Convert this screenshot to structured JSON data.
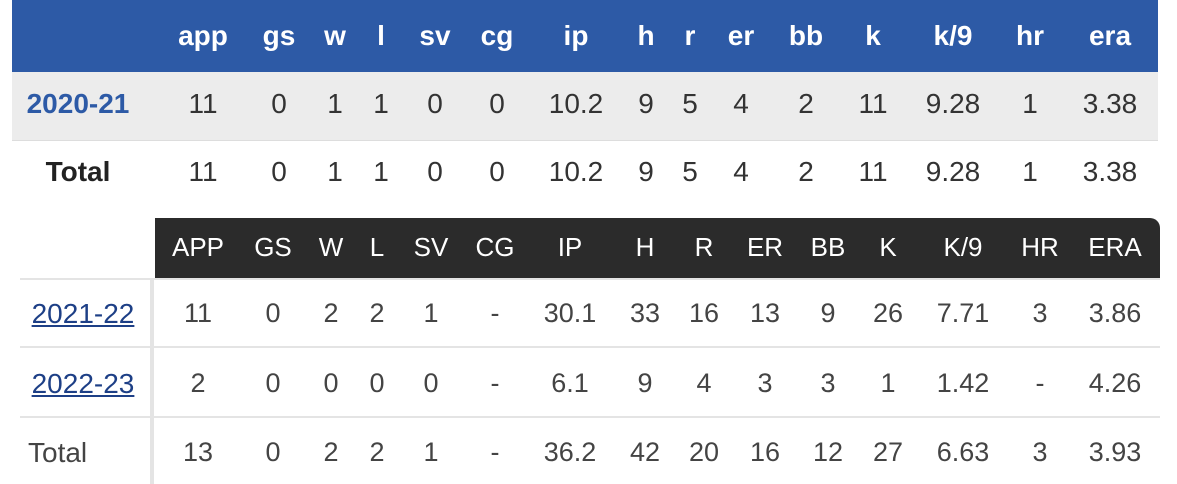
{
  "table1": {
    "headers": [
      "app",
      "gs",
      "w",
      "l",
      "sv",
      "cg",
      "ip",
      "h",
      "r",
      "er",
      "bb",
      "k",
      "k/9",
      "hr",
      "era"
    ],
    "rows": [
      {
        "label": "2020-21",
        "cells": [
          "11",
          "0",
          "1",
          "1",
          "0",
          "0",
          "10.2",
          "9",
          "5",
          "4",
          "2",
          "11",
          "9.28",
          "1",
          "3.38"
        ]
      },
      {
        "label": "Total",
        "cells": [
          "11",
          "0",
          "1",
          "1",
          "0",
          "0",
          "10.2",
          "9",
          "5",
          "4",
          "2",
          "11",
          "9.28",
          "1",
          "3.38"
        ]
      }
    ]
  },
  "table2": {
    "headers": [
      "APP",
      "GS",
      "W",
      "L",
      "SV",
      "CG",
      "IP",
      "H",
      "R",
      "ER",
      "BB",
      "K",
      "K/9",
      "HR",
      "ERA"
    ],
    "rows": [
      {
        "label": "2021-22",
        "cells": [
          "11",
          "0",
          "2",
          "2",
          "1",
          "-",
          "30.1",
          "33",
          "16",
          "13",
          "9",
          "26",
          "7.71",
          "3",
          "3.86"
        ]
      },
      {
        "label": "2022-23",
        "cells": [
          "2",
          "0",
          "0",
          "0",
          "0",
          "-",
          "6.1",
          "9",
          "4",
          "3",
          "3",
          "1",
          "1.42",
          "-",
          "4.26"
        ]
      },
      {
        "label": "Total",
        "cells": [
          "13",
          "0",
          "2",
          "2",
          "1",
          "-",
          "36.2",
          "42",
          "20",
          "16",
          "12",
          "27",
          "6.63",
          "3",
          "3.93"
        ]
      }
    ]
  }
}
